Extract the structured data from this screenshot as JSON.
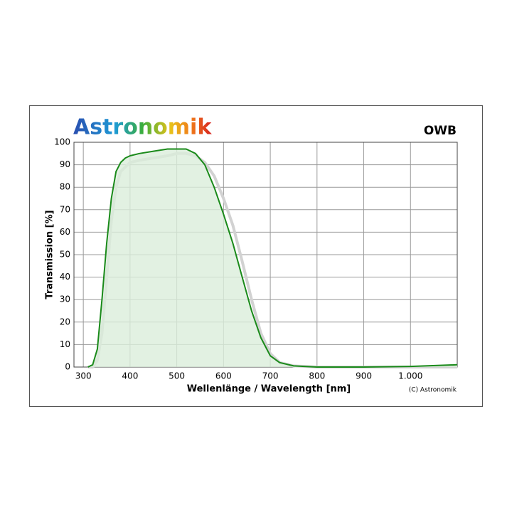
{
  "chart_data": {
    "type": "line",
    "logo": "Astronomik",
    "title": "OWB",
    "xlabel": "Wellenlänge / Wavelength [nm]",
    "ylabel": "Transmission [%]",
    "credit": "(C) Astronomik",
    "x": [
      310,
      320,
      330,
      340,
      350,
      360,
      370,
      380,
      390,
      400,
      420,
      450,
      480,
      500,
      520,
      540,
      560,
      580,
      600,
      620,
      640,
      660,
      680,
      700,
      720,
      750,
      800,
      900,
      1000,
      1100
    ],
    "series": [
      {
        "color": "#d2d2d2",
        "values": [
          0,
          0,
          3,
          15,
          40,
          65,
          80,
          87,
          89,
          91,
          92,
          93,
          94,
          95,
          95,
          94,
          91,
          85,
          75,
          63,
          47,
          30,
          15,
          6,
          2,
          0.5,
          0,
          0,
          0,
          0
        ]
      },
      {
        "color": "#1a8a1a",
        "fill": "#dbeedb",
        "values": [
          0,
          1,
          8,
          30,
          55,
          75,
          87,
          91,
          93,
          94,
          95,
          96,
          97,
          97,
          97,
          95,
          90,
          80,
          68,
          55,
          40,
          25,
          13,
          5,
          2,
          0.5,
          0,
          0,
          0.3,
          1
        ]
      }
    ],
    "xlim": [
      280,
      1100
    ],
    "ylim": [
      0,
      100
    ],
    "xticks": [
      300,
      400,
      500,
      600,
      700,
      800,
      900,
      {
        "value": 1000,
        "label": "1.000"
      }
    ],
    "yticks": [
      0,
      10,
      20,
      30,
      40,
      50,
      60,
      70,
      80,
      90,
      100
    ],
    "grid": true
  }
}
